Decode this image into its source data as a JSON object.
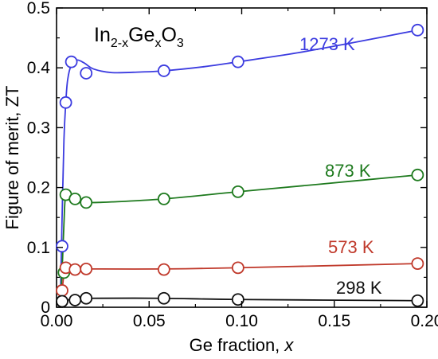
{
  "chart_data": {
    "type": "scatter",
    "annotation": {
      "base1": "In",
      "sub1": "2-x",
      "base2": "Ge",
      "sub2": "x",
      "base3": "O",
      "sub3": "3"
    },
    "xlabel": "Ge fraction, ",
    "xlabel_var": "x",
    "ylabel": "Figure of merit, ZT",
    "xlim": [
      0,
      0.2
    ],
    "ylim": [
      0,
      0.5
    ],
    "xticks": [
      "0.00",
      "0.05",
      "0.10",
      "0.15",
      "0.20"
    ],
    "yticks": [
      "0",
      "0.1",
      "0.2",
      "0.3",
      "0.4",
      "0.5"
    ],
    "grid": false,
    "series": [
      {
        "name": "1273 K",
        "color": "#3c3ce0",
        "x": [
          0.003,
          0.005,
          0.008,
          0.016,
          0.058,
          0.098,
          0.195
        ],
        "y": [
          0.102,
          0.342,
          0.41,
          0.391,
          0.395,
          0.41,
          0.463
        ],
        "curve": [
          [
            0.002,
            0.0
          ],
          [
            0.003,
            0.15
          ],
          [
            0.004,
            0.28
          ],
          [
            0.005,
            0.342
          ],
          [
            0.006,
            0.38
          ],
          [
            0.008,
            0.405
          ],
          [
            0.011,
            0.413
          ],
          [
            0.015,
            0.408
          ],
          [
            0.02,
            0.398
          ],
          [
            0.03,
            0.392
          ],
          [
            0.045,
            0.393
          ],
          [
            0.058,
            0.395
          ],
          [
            0.08,
            0.402
          ],
          [
            0.098,
            0.41
          ],
          [
            0.13,
            0.425
          ],
          [
            0.16,
            0.442
          ],
          [
            0.195,
            0.463
          ]
        ]
      },
      {
        "name": "873 K",
        "color": "#1e7a1e",
        "x": [
          0.004,
          0.005,
          0.01,
          0.016,
          0.058,
          0.098,
          0.195
        ],
        "y": [
          0.058,
          0.188,
          0.181,
          0.175,
          0.181,
          0.193,
          0.221
        ],
        "curve": [
          [
            0.002,
            0.0
          ],
          [
            0.003,
            0.06
          ],
          [
            0.004,
            0.14
          ],
          [
            0.005,
            0.188
          ],
          [
            0.008,
            0.184
          ],
          [
            0.012,
            0.178
          ],
          [
            0.016,
            0.175
          ],
          [
            0.03,
            0.176
          ],
          [
            0.058,
            0.181
          ],
          [
            0.098,
            0.193
          ],
          [
            0.14,
            0.205
          ],
          [
            0.195,
            0.221
          ]
        ]
      },
      {
        "name": "573 K",
        "color": "#c0392b",
        "x": [
          0.003,
          0.005,
          0.01,
          0.016,
          0.058,
          0.098,
          0.195
        ],
        "y": [
          0.028,
          0.066,
          0.063,
          0.064,
          0.063,
          0.066,
          0.073
        ],
        "curve": [
          [
            0.002,
            0.0
          ],
          [
            0.003,
            0.028
          ],
          [
            0.004,
            0.055
          ],
          [
            0.005,
            0.066
          ],
          [
            0.01,
            0.064
          ],
          [
            0.016,
            0.064
          ],
          [
            0.058,
            0.064
          ],
          [
            0.098,
            0.066
          ],
          [
            0.195,
            0.073
          ]
        ]
      },
      {
        "name": "298 K",
        "color": "#111111",
        "x": [
          0.003,
          0.01,
          0.016,
          0.058,
          0.098,
          0.195
        ],
        "y": [
          0.01,
          0.012,
          0.015,
          0.015,
          0.013,
          0.011
        ],
        "curve": [
          [
            0.001,
            0.004
          ],
          [
            0.003,
            0.01
          ],
          [
            0.01,
            0.014
          ],
          [
            0.016,
            0.015
          ],
          [
            0.058,
            0.015
          ],
          [
            0.098,
            0.013
          ],
          [
            0.195,
            0.011
          ]
        ]
      }
    ]
  }
}
